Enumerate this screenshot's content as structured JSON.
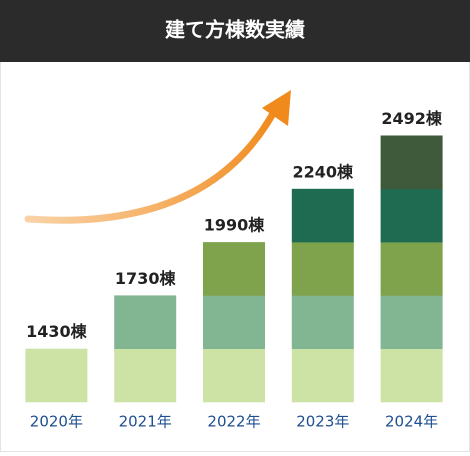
{
  "chart_data": {
    "type": "bar",
    "title": "建て方棟数実績",
    "categories": [
      "2020年",
      "2021年",
      "2022年",
      "2023年",
      "2024年"
    ],
    "values": [
      1430,
      1730,
      1990,
      2240,
      2492
    ],
    "value_labels": [
      "1430棟",
      "1730棟",
      "1990棟",
      "2240棟",
      "2492棟"
    ],
    "colors": [
      "#cde3a6",
      "#82b592",
      "#7fa34d",
      "#1e6b52",
      "#3f5a3a"
    ]
  }
}
